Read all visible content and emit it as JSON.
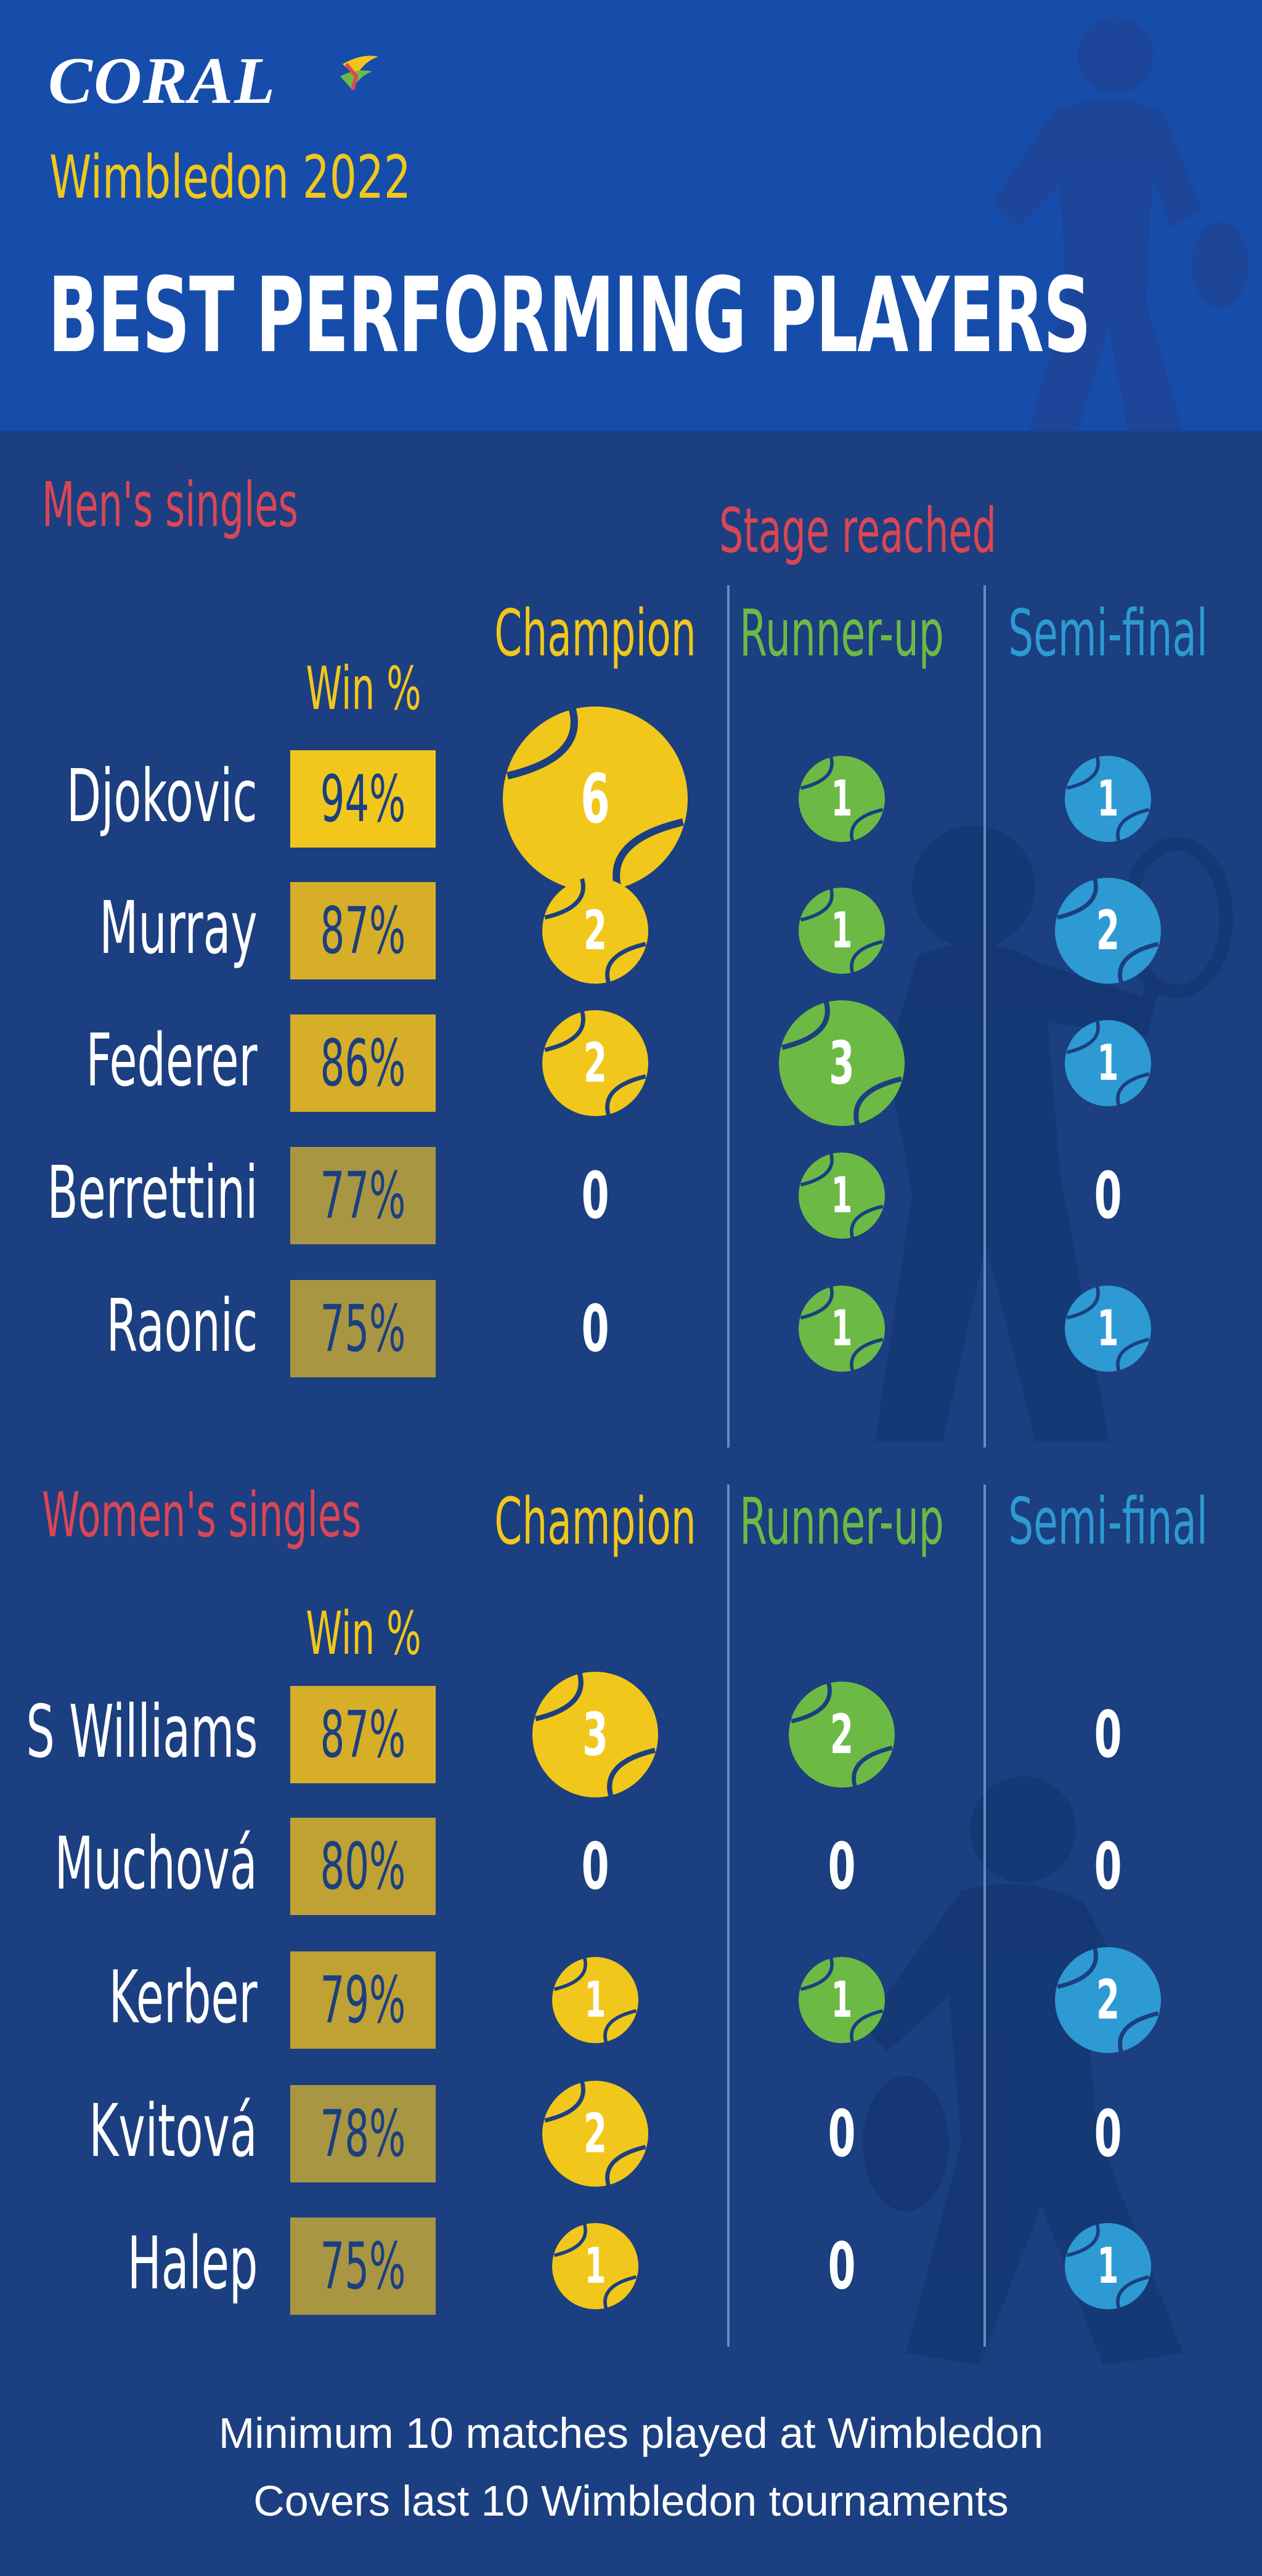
{
  "brand": {
    "logo_text": "CORAL"
  },
  "header": {
    "subtitle": "Wimbledon 2022",
    "title": "BEST PERFORMING PLAYERS"
  },
  "colors": {
    "background": "#1b3f80",
    "header_background": "#164dab",
    "champion": "#f2c71b",
    "runner_up": "#6cba45",
    "semi_final": "#2e9ad3",
    "section_heading": "#db4654"
  },
  "labels": {
    "stage_reached": "Stage reached",
    "win_pct": "Win %",
    "champion": "Champion",
    "runner_up": "Runner-up",
    "semi_final": "Semi-final"
  },
  "chart_data": [
    {
      "type": "table",
      "section": "Men's singles",
      "columns": [
        "Win %",
        "Champion",
        "Runner-up",
        "Semi-final"
      ],
      "rows": [
        {
          "player": "Djokovic",
          "win_pct": 94,
          "win_pct_label": "94%",
          "champion": 6,
          "runner_up": 1,
          "semi_final": 1
        },
        {
          "player": "Murray",
          "win_pct": 87,
          "win_pct_label": "87%",
          "champion": 2,
          "runner_up": 1,
          "semi_final": 2
        },
        {
          "player": "Federer",
          "win_pct": 86,
          "win_pct_label": "86%",
          "champion": 2,
          "runner_up": 3,
          "semi_final": 1
        },
        {
          "player": "Berrettini",
          "win_pct": 77,
          "win_pct_label": "77%",
          "champion": 0,
          "runner_up": 1,
          "semi_final": 0
        },
        {
          "player": "Raonic",
          "win_pct": 75,
          "win_pct_label": "75%",
          "champion": 0,
          "runner_up": 1,
          "semi_final": 1
        }
      ]
    },
    {
      "type": "table",
      "section": "Women's singles",
      "columns": [
        "Win %",
        "Champion",
        "Runner-up",
        "Semi-final"
      ],
      "rows": [
        {
          "player": "S Williams",
          "win_pct": 87,
          "win_pct_label": "87%",
          "champion": 3,
          "runner_up": 2,
          "semi_final": 0
        },
        {
          "player": "Muchová",
          "win_pct": 80,
          "win_pct_label": "80%",
          "champion": 0,
          "runner_up": 0,
          "semi_final": 0
        },
        {
          "player": "Kerber",
          "win_pct": 79,
          "win_pct_label": "79%",
          "champion": 1,
          "runner_up": 1,
          "semi_final": 2
        },
        {
          "player": "Kvitová",
          "win_pct": 78,
          "win_pct_label": "78%",
          "champion": 2,
          "runner_up": 0,
          "semi_final": 0
        },
        {
          "player": "Halep",
          "win_pct": 75,
          "win_pct_label": "75%",
          "champion": 1,
          "runner_up": 0,
          "semi_final": 1
        }
      ]
    }
  ],
  "footer": {
    "line1": "Minimum 10 matches played at Wimbledon",
    "line2": "Covers last 10 Wimbledon tournaments"
  }
}
